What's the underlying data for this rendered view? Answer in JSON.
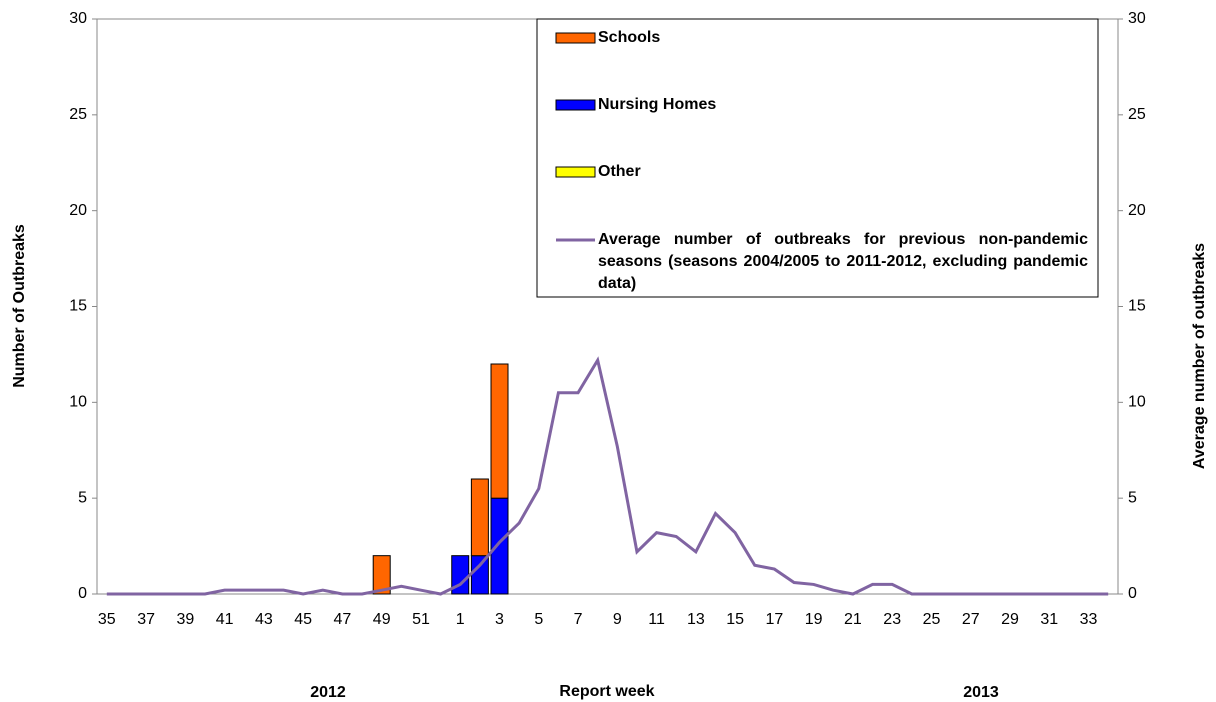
{
  "chart_data": {
    "type": "bar",
    "x_label": "Report week",
    "y_label": "Number of Outbreaks",
    "y2_label": "Average number of outbreaks",
    "annotations": [
      "2012",
      "2013"
    ],
    "categories": [
      "35",
      null,
      "37",
      null,
      "39",
      null,
      "41",
      null,
      "43",
      null,
      "45",
      null,
      "47",
      null,
      "49",
      null,
      "51",
      null,
      "1",
      null,
      "3",
      null,
      "5",
      null,
      "7",
      null,
      "9",
      null,
      "11",
      null,
      "13",
      null,
      "15",
      null,
      "17",
      null,
      "19",
      null,
      "21",
      null,
      "23",
      null,
      "25",
      null,
      "27",
      null,
      "29",
      null,
      "31",
      null,
      "33",
      null
    ],
    "series": [
      {
        "name": "Schools",
        "color": "#ff6600",
        "values": [
          0,
          0,
          0,
          0,
          0,
          0,
          0,
          0,
          0,
          0,
          0,
          0,
          0,
          0,
          2,
          0,
          0,
          0,
          0,
          4,
          7,
          0,
          0,
          0,
          0,
          0,
          0,
          0,
          0,
          0,
          0,
          0,
          0,
          0,
          0,
          0,
          0,
          0,
          0,
          0,
          0,
          0,
          0,
          0,
          0,
          0,
          0,
          0,
          0,
          0,
          0,
          0
        ]
      },
      {
        "name": "Nursing Homes",
        "color": "#0000ff",
        "values": [
          0,
          0,
          0,
          0,
          0,
          0,
          0,
          0,
          0,
          0,
          0,
          0,
          0,
          0,
          0,
          0,
          0,
          0,
          2,
          2,
          5,
          0,
          0,
          0,
          0,
          0,
          0,
          0,
          0,
          0,
          0,
          0,
          0,
          0,
          0,
          0,
          0,
          0,
          0,
          0,
          0,
          0,
          0,
          0,
          0,
          0,
          0,
          0,
          0,
          0,
          0,
          0
        ]
      },
      {
        "name": "Other",
        "color": "#ffff00",
        "values": [
          0,
          0,
          0,
          0,
          0,
          0,
          0,
          0,
          0,
          0,
          0,
          0,
          0,
          0,
          0,
          0,
          0,
          0,
          0,
          0,
          0,
          0,
          0,
          0,
          0,
          0,
          0,
          0,
          0,
          0,
          0,
          0,
          0,
          0,
          0,
          0,
          0,
          0,
          0,
          0,
          0,
          0,
          0,
          0,
          0,
          0,
          0,
          0,
          0,
          0,
          0,
          0
        ]
      },
      {
        "name": "Average number of outbreaks for previous non-pandemic seasons (seasons 2004/2005 to 2011-2012, excluding pandemic data)",
        "color": "#8064a2",
        "type": "line",
        "axis": "y2",
        "values": [
          0,
          0,
          0,
          0,
          0,
          0,
          0.2,
          0.2,
          0.2,
          0.2,
          0,
          0.2,
          0,
          0,
          0.2,
          0.4,
          0.2,
          0,
          0.5,
          1.5,
          2.7,
          3.7,
          5.5,
          10.5,
          10.5,
          12.2,
          7.7,
          2.2,
          3.2,
          3.0,
          2.2,
          4.2,
          3.2,
          1.5,
          1.3,
          0.6,
          0.5,
          0.2,
          0,
          0.5,
          0.5,
          0,
          0,
          0,
          0,
          0,
          0,
          0,
          0,
          0,
          0,
          0
        ]
      }
    ],
    "ylim": [
      0,
      30
    ],
    "yticks": [
      0,
      5,
      10,
      15,
      20,
      25,
      30
    ],
    "y2lim": [
      0,
      30
    ],
    "y2ticks": [
      0,
      5,
      10,
      15,
      20,
      25,
      30
    ],
    "stacked": true
  }
}
